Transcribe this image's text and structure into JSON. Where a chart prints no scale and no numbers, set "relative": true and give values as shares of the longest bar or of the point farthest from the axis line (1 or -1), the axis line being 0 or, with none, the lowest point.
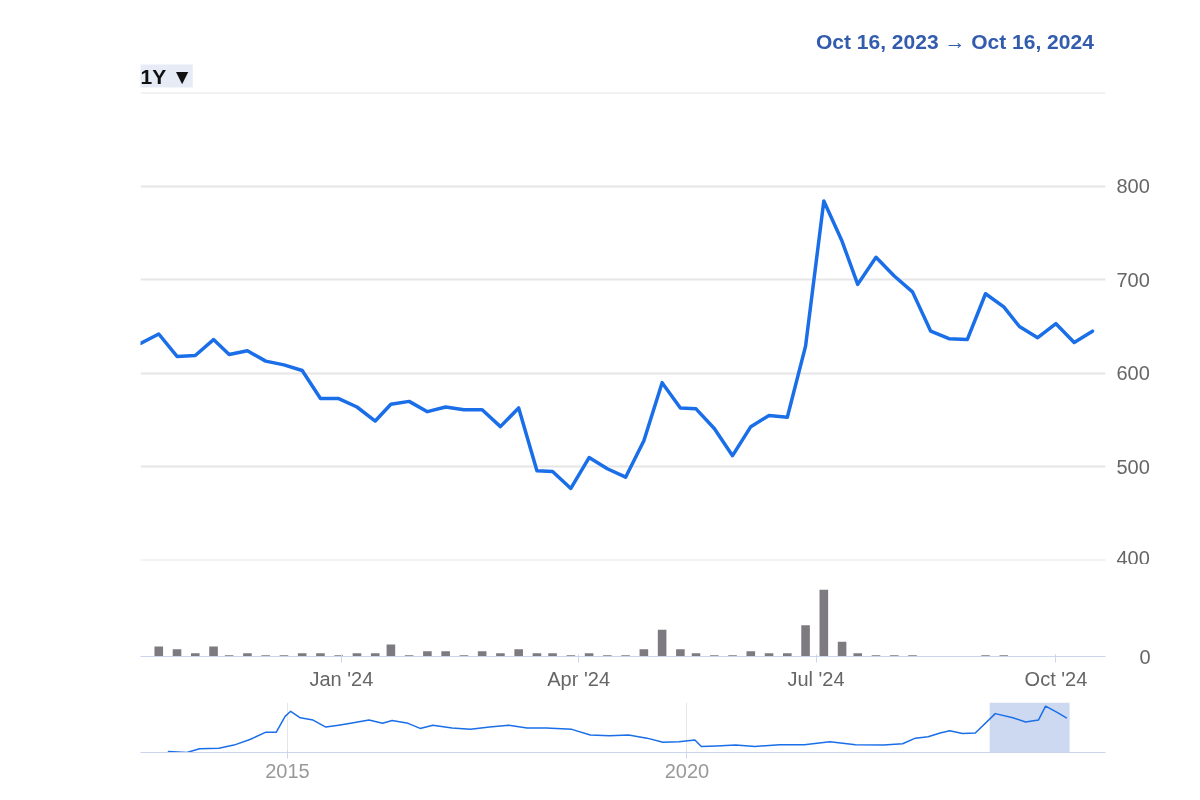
{
  "chart_data": [
    {
      "type": "line",
      "annotations": [
        "1Y ▼",
        "Oct 16, 2023  →  Oct 16, 2024"
      ],
      "x": [
        "2023-10-16",
        "2023-10-23",
        "2023-10-30",
        "2023-11-06",
        "2023-11-13",
        "2023-11-19",
        "2023-11-26",
        "2023-12-03",
        "2023-12-10",
        "2023-12-17",
        "2023-12-24",
        "2023-12-31",
        "2024-01-07",
        "2024-01-14",
        "2024-01-20",
        "2024-01-27",
        "2024-02-03",
        "2024-02-10",
        "2024-02-17",
        "2024-02-24",
        "2024-03-02",
        "2024-03-09",
        "2024-03-16",
        "2024-03-22",
        "2024-03-29",
        "2024-04-05",
        "2024-04-12",
        "2024-04-19",
        "2024-04-26",
        "2024-05-03",
        "2024-05-10",
        "2024-05-16",
        "2024-05-23",
        "2024-05-30",
        "2024-06-06",
        "2024-06-13",
        "2024-06-20",
        "2024-06-27",
        "2024-07-04",
        "2024-07-11",
        "2024-07-17",
        "2024-07-24",
        "2024-07-31",
        "2024-08-07",
        "2024-08-14",
        "2024-08-21",
        "2024-08-28",
        "2024-09-04",
        "2024-09-11",
        "2024-09-17",
        "2024-09-24",
        "2024-10-01",
        "2024-10-08",
        "2024-10-15"
      ],
      "series": [
        {
          "color": "#1a6ee8",
          "values": [
            632,
            642,
            618,
            619,
            636,
            620,
            624,
            613,
            609,
            603,
            573,
            573,
            564,
            549,
            567,
            570,
            559,
            564,
            561,
            561,
            543,
            563,
            496,
            495,
            477,
            510,
            498,
            489,
            528,
            590,
            563,
            562,
            541,
            512,
            543,
            555,
            553,
            629,
            784,
            741,
            695,
            724,
            704,
            687,
            645,
            637,
            636,
            685,
            671,
            650,
            638,
            653,
            633,
            645
          ]
        }
      ],
      "xlim": [
        "2023-10-16",
        "2024-10-20"
      ],
      "ylim": [
        400,
        900
      ],
      "yticks": [
        400,
        500,
        600,
        700,
        800,
        {
          "value": 900,
          "label": null
        }
      ],
      "grid": "y",
      "tick_labels": "y"
    },
    {
      "type": "bar",
      "relative": true,
      "annotations": [
        "0"
      ],
      "x": [
        "2023-10-23",
        "2023-10-30",
        "2023-11-06",
        "2023-11-13",
        "2023-11-19",
        "2023-11-26",
        "2023-12-03",
        "2023-12-10",
        "2023-12-17",
        "2023-12-24",
        "2023-12-31",
        "2024-01-07",
        "2024-01-14",
        "2024-01-20",
        "2024-01-27",
        "2024-02-03",
        "2024-02-10",
        "2024-02-17",
        "2024-02-24",
        "2024-03-02",
        "2024-03-09",
        "2024-03-16",
        "2024-03-22",
        "2024-03-29",
        "2024-04-05",
        "2024-04-12",
        "2024-04-19",
        "2024-04-26",
        "2024-05-03",
        "2024-05-10",
        "2024-05-16",
        "2024-05-23",
        "2024-05-30",
        "2024-06-06",
        "2024-06-13",
        "2024-06-20",
        "2024-06-27",
        "2024-07-04",
        "2024-07-11",
        "2024-07-17",
        "2024-07-24",
        "2024-07-31",
        "2024-08-07",
        "2024-08-14",
        "2024-08-21",
        "2024-08-28",
        "2024-09-04",
        "2024-09-11",
        "2024-09-17",
        "2024-09-24",
        "2024-10-01",
        "2024-10-08",
        "2024-10-15"
      ],
      "series": [
        {
          "color": "#7d7a80",
          "values": [
            0.15,
            0.11,
            0.05,
            0.15,
            0.02,
            0.05,
            0.02,
            0.02,
            0.05,
            0.05,
            0.02,
            0.05,
            0.05,
            0.18,
            0.02,
            0.08,
            0.08,
            0.02,
            0.08,
            0.05,
            0.11,
            0.05,
            0.05,
            0.02,
            0.05,
            0.02,
            0.02,
            0.11,
            0.4,
            0.11,
            0.05,
            0.02,
            0.02,
            0.08,
            0.05,
            0.05,
            0.47,
            1,
            0.22,
            0.05,
            0.02,
            0.02,
            0.02,
            0,
            0,
            0,
            0.02,
            0.02,
            0,
            0,
            0,
            0,
            0
          ]
        }
      ],
      "xlim": [
        "2023-10-16",
        "2024-10-20"
      ],
      "xticks": [
        {
          "value": "2024-01-01",
          "label": "Jan '24"
        },
        {
          "value": "2024-04-01",
          "label": "Apr '24"
        },
        {
          "value": "2024-07-01",
          "label": "Jul '24"
        },
        {
          "value": "2024-10-01",
          "label": "Oct '24"
        }
      ],
      "grid": false,
      "tick_labels": "x"
    },
    {
      "type": "line",
      "relative": true,
      "x": [
        2013.51,
        2013.74,
        2013.9,
        2014.14,
        2014.33,
        2014.53,
        2014.73,
        2014.86,
        2014.97,
        2015.04,
        2015.16,
        2015.32,
        2015.48,
        2015.64,
        2015.79,
        2016.02,
        2016.19,
        2016.31,
        2016.51,
        2016.66,
        2016.82,
        2017.06,
        2017.29,
        2017.53,
        2017.77,
        2018.0,
        2018.24,
        2018.56,
        2018.79,
        2019.03,
        2019.27,
        2019.5,
        2019.7,
        2019.9,
        2020.1,
        2020.18,
        2020.37,
        2020.61,
        2020.85,
        2021.16,
        2021.47,
        2021.79,
        2022.11,
        2022.46,
        2022.7,
        2022.86,
        2023.02,
        2023.17,
        2023.29,
        2023.45,
        2023.61,
        2023.86,
        2024.08,
        2024.24,
        2024.4,
        2024.49,
        2024.64,
        2024.75
      ],
      "series": [
        {
          "color": "#1a6ee8",
          "values": [
            0.02,
            0,
            0.08,
            0.09,
            0.16,
            0.28,
            0.44,
            0.44,
            0.78,
            0.89,
            0.75,
            0.7,
            0.55,
            0.59,
            0.63,
            0.7,
            0.63,
            0.69,
            0.63,
            0.52,
            0.59,
            0.53,
            0.5,
            0.55,
            0.59,
            0.53,
            0.53,
            0.5,
            0.38,
            0.36,
            0.38,
            0.31,
            0.22,
            0.23,
            0.27,
            0.13,
            0.14,
            0.16,
            0.13,
            0.17,
            0.17,
            0.23,
            0.17,
            0.16,
            0.19,
            0.31,
            0.34,
            0.42,
            0.47,
            0.41,
            0.42,
            0.84,
            0.75,
            0.66,
            0.7,
            1,
            0.86,
            0.75
          ]
        }
      ],
      "xlim": [
        2013.16,
        2025.24
      ],
      "xticks": [
        2015,
        2020
      ],
      "bands": [
        {
          "axis": "x",
          "from": 2023.79,
          "to": 2024.79,
          "color": "#cdd9f0"
        }
      ],
      "grid": "x",
      "tick_labels": "x"
    }
  ]
}
